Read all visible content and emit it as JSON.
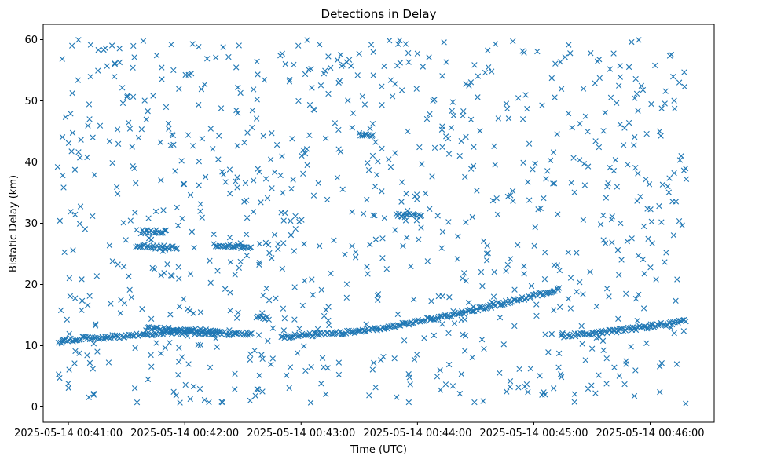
{
  "chart_data": {
    "type": "scatter",
    "title": "Detections in Delay",
    "xlabel": "Time (UTC)",
    "ylabel": "Bistatic Delay (km)",
    "marker": "x",
    "color": "#1f77b4",
    "x_unit": "seconds after 2025-05-14 00:41:00 UTC",
    "xlim": [
      -13,
      333
    ],
    "ylim": [
      -2.5,
      62.5
    ],
    "x_ticks": [
      {
        "value": 0,
        "label": "2025-05-14 00:41:00"
      },
      {
        "value": 60,
        "label": "2025-05-14 00:42:00"
      },
      {
        "value": 120,
        "label": "2025-05-14 00:43:00"
      },
      {
        "value": 180,
        "label": "2025-05-14 00:44:00"
      },
      {
        "value": 240,
        "label": "2025-05-14 00:45:00"
      },
      {
        "value": 300,
        "label": "2025-05-14 00:46:00"
      }
    ],
    "y_ticks": [
      0,
      10,
      20,
      30,
      40,
      50,
      60
    ],
    "x_range_data": [
      -6,
      319
    ],
    "tracks": [
      {
        "name": "track-a",
        "points": [
          [
            -5,
            10.7
          ],
          [
            8,
            11.2
          ],
          [
            25,
            11.5
          ],
          [
            55,
            12.2
          ],
          [
            80,
            12.0
          ],
          [
            95,
            12.0
          ]
        ]
      },
      {
        "name": "track-a-upper",
        "points": [
          [
            40,
            12.8
          ],
          [
            60,
            12.5
          ],
          [
            78,
            12.4
          ]
        ]
      },
      {
        "name": "track-b",
        "points": [
          [
            110,
            11.5
          ],
          [
            140,
            12.0
          ],
          [
            165,
            13.0
          ],
          [
            205,
            15.5
          ],
          [
            238,
            18.0
          ],
          [
            254,
            19.3
          ]
        ]
      },
      {
        "name": "track-c",
        "points": [
          [
            254,
            11.6
          ],
          [
            285,
            12.5
          ],
          [
            319,
            14.0
          ]
        ]
      },
      {
        "name": "band-26",
        "points": [
          [
            35,
            26.2
          ],
          [
            57,
            26.0
          ]
        ]
      },
      {
        "name": "band-26b",
        "points": [
          [
            75,
            26.5
          ],
          [
            95,
            26.0
          ]
        ]
      },
      {
        "name": "band-28",
        "points": [
          [
            38,
            28.6
          ],
          [
            51,
            28.7
          ]
        ]
      },
      {
        "name": "band-31",
        "points": [
          [
            169,
            31.3
          ],
          [
            183,
            31.2
          ]
        ]
      },
      {
        "name": "band-14",
        "points": [
          [
            97,
            14.6
          ],
          [
            104,
            14.5
          ]
        ]
      },
      {
        "name": "band-44",
        "points": [
          [
            150,
            44.5
          ],
          [
            158,
            44.2
          ]
        ]
      }
    ],
    "random_detections": {
      "count": 900,
      "ymin": 0.5,
      "ymax": 60
    }
  }
}
